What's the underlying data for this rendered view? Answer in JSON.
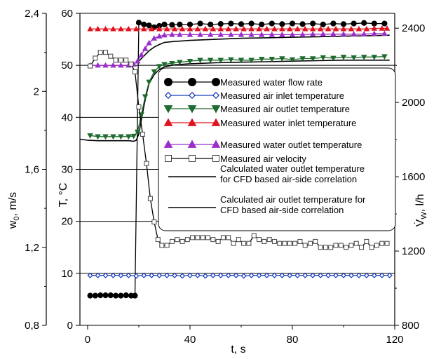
{
  "chart_data": {
    "type": "line",
    "xlabel": "t, s",
    "ylabel_left_outer": "w0, m/s",
    "ylabel_left_inner": "T, °C",
    "ylabel_right": "V̇w, l/h",
    "xlim": [
      -3,
      120
    ],
    "ylim_temp": [
      0,
      60
    ],
    "ylim_vel": [
      0.8,
      2.4
    ],
    "ylim_flow": [
      800,
      2480
    ],
    "x_ticks": [
      "0",
      "40",
      "80",
      "120"
    ],
    "temp_ticks": [
      "0",
      "10",
      "20",
      "30",
      "40",
      "50",
      "60"
    ],
    "vel_ticks": [
      "0,8",
      "1,2",
      "1,6",
      "2",
      "2,4"
    ],
    "flow_ticks": [
      "800",
      "1200",
      "1600",
      "2000",
      "2400"
    ],
    "legend_position": "right",
    "legend": [
      {
        "label": "Measured water flow rate",
        "marker": "filled-circle",
        "color": "#000000"
      },
      {
        "label": "Measured air inlet temperature",
        "marker": "open-diamond",
        "color": "#1f3fbf"
      },
      {
        "label": "Measured air outlet temperature",
        "marker": "down-triangle",
        "color": "#1e6b2e"
      },
      {
        "label": "Measured water inlet temperature",
        "marker": "up-triangle",
        "color": "#e0141e"
      },
      {
        "label": "Measured water outlet temperature",
        "marker": "up-triangle",
        "color": "#9a2fc8"
      },
      {
        "label": "Measured air velocity",
        "marker": "open-square",
        "color": "#444444"
      },
      {
        "label": "Calculated water outlet temperature\nfor CFD based air-side correlation",
        "marker": "line",
        "color": "#000000"
      },
      {
        "label": "Calculated air outlet temperature for\nCFD based air-side correlation",
        "marker": "line",
        "color": "#000000"
      }
    ],
    "series": [
      {
        "name": "Measured water flow rate",
        "axis": "flow",
        "color": "#000000",
        "x": [
          1,
          3,
          5,
          7,
          9,
          11,
          13,
          15,
          17,
          18.5,
          20,
          22,
          24,
          26,
          28,
          30,
          33,
          36,
          40,
          44,
          48,
          52,
          56,
          60,
          64,
          68,
          72,
          76,
          80,
          84,
          88,
          92,
          96,
          100,
          104,
          108,
          112,
          116
        ],
        "y": [
          960,
          960,
          962,
          962,
          962,
          960,
          960,
          962,
          960,
          960,
          2430,
          2420,
          2415,
          2405,
          2412,
          2420,
          2418,
          2420,
          2420,
          2425,
          2420,
          2423,
          2425,
          2422,
          2425,
          2420,
          2425,
          2422,
          2425,
          2422,
          2425,
          2420,
          2425,
          2422,
          2425,
          2428,
          2425,
          2425
        ]
      },
      {
        "name": "Measured air inlet temperature",
        "axis": "temp",
        "color": "#1f3fbf",
        "x": [
          1,
          4,
          7,
          10,
          13,
          16,
          19,
          22,
          25,
          28,
          31,
          34,
          37,
          40,
          43,
          46,
          49,
          52,
          55,
          58,
          61,
          64,
          67,
          70,
          73,
          76,
          79,
          82,
          85,
          88,
          91,
          94,
          97,
          100,
          103,
          106,
          109,
          112,
          115,
          118
        ],
        "y": [
          9.6,
          9.6,
          9.6,
          9.6,
          9.6,
          9.6,
          9.5,
          9.6,
          9.6,
          9.6,
          9.6,
          9.6,
          9.5,
          9.6,
          9.6,
          9.5,
          9.6,
          9.6,
          9.6,
          9.6,
          9.5,
          9.6,
          9.6,
          9.6,
          9.6,
          9.6,
          9.6,
          9.6,
          9.6,
          9.6,
          9.6,
          9.6,
          9.6,
          9.6,
          9.6,
          9.6,
          9.6,
          9.6,
          9.6,
          9.6
        ]
      },
      {
        "name": "Measured air outlet temperature",
        "axis": "temp",
        "color": "#1e6b2e",
        "x": [
          1,
          4,
          7,
          10,
          13,
          16,
          18,
          19.5,
          21,
          22.5,
          24,
          26,
          28,
          30,
          33,
          36,
          40,
          44,
          48,
          52,
          56,
          60,
          64,
          68,
          72,
          76,
          80,
          84,
          88,
          92,
          96,
          100,
          104,
          108,
          112,
          116
        ],
        "y": [
          36.5,
          36.3,
          36.3,
          36.3,
          36.3,
          36.3,
          36.4,
          37.2,
          40.5,
          44.0,
          46.8,
          48.8,
          49.8,
          50.2,
          50.4,
          50.6,
          50.8,
          51.0,
          51.0,
          51.0,
          51.1,
          51.0,
          51.0,
          51.2,
          51.2,
          51.3,
          51.1,
          51.3,
          51.3,
          51.5,
          51.4,
          51.6,
          51.5,
          51.6,
          51.6,
          51.7
        ]
      },
      {
        "name": "Measured water inlet temperature",
        "axis": "temp",
        "color": "#e0141e",
        "x": [
          1,
          4,
          7,
          10,
          13,
          16,
          19,
          22,
          25,
          28,
          31,
          34,
          37,
          40,
          43,
          46,
          49,
          52,
          55,
          58,
          61,
          64,
          67,
          70,
          73,
          76,
          79,
          82,
          85,
          88,
          91,
          94,
          97,
          100,
          103,
          106,
          109,
          112,
          115,
          117
        ],
        "y": [
          57.0,
          57.0,
          57.0,
          57.0,
          57.0,
          57.0,
          57.0,
          57.0,
          57.0,
          57.0,
          57.0,
          57.0,
          57.0,
          57.0,
          57.0,
          57.0,
          57.0,
          57.0,
          57.0,
          57.0,
          57.0,
          57.0,
          57.0,
          57.0,
          57.0,
          57.0,
          57.0,
          57.0,
          57.0,
          57.0,
          57.0,
          57.0,
          57.0,
          57.0,
          57.0,
          57.0,
          57.0,
          57.1,
          57.1,
          57.1
        ]
      },
      {
        "name": "Measured water outlet temperature",
        "axis": "temp",
        "color": "#9a2fc8",
        "x": [
          1,
          4,
          7,
          10,
          13,
          16,
          18,
          19.5,
          21,
          22.5,
          24,
          26,
          28,
          30,
          33,
          36,
          40,
          44,
          48,
          52,
          56,
          60,
          64,
          68,
          72,
          76,
          80,
          84,
          88,
          92,
          96,
          100,
          104,
          108,
          112,
          116
        ],
        "y": [
          50.0,
          50.0,
          50.0,
          50.0,
          50.0,
          50.0,
          50.2,
          50.8,
          52.0,
          53.2,
          54.3,
          55.2,
          55.6,
          55.8,
          55.9,
          55.9,
          55.9,
          55.9,
          55.9,
          55.9,
          55.9,
          55.9,
          55.9,
          55.9,
          55.9,
          55.9,
          55.9,
          55.9,
          56.0,
          56.0,
          56.0,
          56.0,
          56.0,
          56.0,
          56.1,
          56.1
        ]
      },
      {
        "name": "Measured air velocity",
        "axis": "vel",
        "color": "#444444",
        "x": [
          1,
          3,
          5,
          7,
          9,
          11,
          13,
          15,
          17,
          18.5,
          20,
          21.5,
          23,
          24.5,
          26,
          27.5,
          29,
          31,
          33,
          35,
          37,
          39,
          41,
          43,
          45,
          47,
          49,
          51,
          53,
          55,
          57,
          59,
          61,
          63,
          65,
          67,
          69,
          71,
          73,
          75,
          77,
          79,
          81,
          83,
          85,
          87,
          89,
          91,
          93,
          95,
          97,
          99,
          101,
          103,
          105,
          107,
          109,
          111,
          113,
          115,
          117
        ],
        "y": [
          2.13,
          2.17,
          2.2,
          2.2,
          2.18,
          2.16,
          2.16,
          2.16,
          2.14,
          2.1,
          1.92,
          1.78,
          1.63,
          1.45,
          1.33,
          1.24,
          1.21,
          1.21,
          1.23,
          1.24,
          1.23,
          1.24,
          1.25,
          1.25,
          1.25,
          1.25,
          1.24,
          1.23,
          1.25,
          1.25,
          1.22,
          1.24,
          1.22,
          1.22,
          1.26,
          1.24,
          1.23,
          1.24,
          1.23,
          1.22,
          1.22,
          1.22,
          1.22,
          1.23,
          1.21,
          1.22,
          1.23,
          1.2,
          1.2,
          1.2,
          1.21,
          1.21,
          1.2,
          1.21,
          1.22,
          1.2,
          1.23,
          1.2,
          1.21,
          1.22,
          1.22
        ]
      },
      {
        "name": "Calculated water outlet temperature for CFD based air-side correlation",
        "axis": "temp",
        "color": "#000000",
        "x": [
          20,
          22,
          24,
          26,
          28,
          30,
          34,
          40,
          50,
          60,
          70,
          80,
          90,
          100,
          110,
          118
        ],
        "y": [
          50.8,
          51.8,
          52.8,
          53.5,
          54.0,
          54.4,
          54.6,
          54.8,
          55.0,
          55.2,
          55.3,
          55.4,
          55.5,
          55.6,
          55.7,
          55.8
        ]
      },
      {
        "name": "Calculated air outlet temperature for CFD based air-side correlation",
        "axis": "temp",
        "color": "#000000",
        "x": [
          -3,
          0,
          4,
          8,
          12,
          16,
          18,
          19,
          20,
          21,
          22,
          23,
          24,
          26,
          28,
          30,
          34,
          40,
          50,
          60,
          70,
          80,
          90,
          100,
          110,
          118
        ],
        "y": [
          35.8,
          35.6,
          35.5,
          35.5,
          35.5,
          35.5,
          35.4,
          35.6,
          36.8,
          39.5,
          42.2,
          44.5,
          46.5,
          48.2,
          49.2,
          49.7,
          50.1,
          50.3,
          50.5,
          50.6,
          50.7,
          50.8,
          50.9,
          51.0,
          51.0,
          51.0
        ]
      }
    ]
  }
}
